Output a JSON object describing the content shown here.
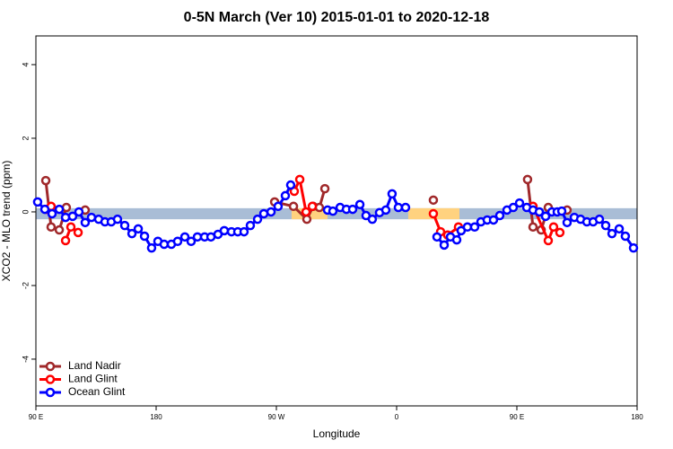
{
  "chart_data": {
    "type": "line",
    "title": "0-5N March (Ver 10)   2015-01-01 to 2020-12-18",
    "xlabel": "Longitude",
    "ylabel": "XCO2 - MLO trend (ppm)",
    "xlim": [
      90,
      540
    ],
    "xticks": [
      {
        "value": 90,
        "label": "90 E"
      },
      180,
      {
        "value": 270,
        "label": "90 W"
      },
      {
        "value": 360,
        "label": "0"
      },
      {
        "value": 450,
        "label": "90 E"
      },
      {
        "value": 540,
        "label": "180"
      }
    ],
    "ylim": [
      -5.27,
      4.78
    ],
    "yticks": [
      -4,
      -2,
      0,
      2,
      4
    ],
    "reference_band": {
      "ylim": [
        -0.2,
        0.1
      ],
      "color": "#a9bdd6"
    },
    "highlights": {
      "color": "#ffd27f",
      "xranges": [
        [
          281.4,
          308.3
        ],
        [
          368.7,
          407
        ]
      ]
    },
    "legend": "bottom-left",
    "series": [
      {
        "name": "Land Nadir",
        "color": "#a0282a",
        "x": [
          97.4,
          101.4,
          107.5,
          112.8,
          null,
          126.9,
          null,
          268.7,
          282.8,
          292.8,
          297.5,
          302.2,
          306.3,
          null,
          387.5,
          null,
          458.0,
          462.1,
          468.2,
          473.5,
          null,
          487.6
        ],
        "values": [
          0.85,
          -0.41,
          -0.49,
          0.12,
          null,
          0.05,
          null,
          0.27,
          0.15,
          -0.2,
          0.15,
          0.12,
          0.63,
          null,
          0.32,
          null,
          0.88,
          -0.41,
          -0.49,
          0.12,
          null,
          0.05
        ]
      },
      {
        "name": "Land Glint",
        "color": "#ff0000",
        "x": [
          98.1,
          101.4,
          null,
          112.2,
          116.2,
          121.6,
          null,
          283.4,
          287.5,
          292.2,
          296.9,
          null,
          387.5,
          392.9,
          398.2,
          406.3,
          null,
          462.1,
          473.5,
          477.5,
          482.2
        ],
        "values": [
          0.07,
          0.15,
          null,
          -0.78,
          -0.41,
          -0.56,
          null,
          0.56,
          0.88,
          0.0,
          0.15,
          null,
          -0.05,
          -0.54,
          -0.63,
          -0.41,
          null,
          0.15,
          -0.78,
          -0.41,
          -0.56
        ]
      },
      {
        "name": "Ocean Glint",
        "color": "#0000ff",
        "x": [
          91.3,
          96.7,
          102.1,
          107.5,
          112.2,
          117.5,
          122.2,
          126.9,
          131.6,
          137.0,
          141.7,
          146.4,
          151.1,
          156.5,
          161.9,
          166.6,
          171.3,
          176.6,
          181.3,
          186.0,
          191.4,
          196.1,
          201.5,
          206.2,
          210.9,
          216.3,
          221.0,
          226.3,
          231.0,
          236.4,
          241.1,
          245.8,
          250.5,
          255.9,
          260.6,
          266.0,
          271.3,
          276.7,
          280.7,
          null,
          308.3,
          312.3,
          317.7,
          322.4,
          327.1,
          332.5,
          337.1,
          341.8,
          347.2,
          351.9,
          356.6,
          361.3,
          366.7,
          null,
          390.2,
          395.6,
          400.3,
          405.0,
          408.3,
          413.0,
          418.4,
          423.1,
          427.8,
          432.5,
          437.2,
          442.6,
          447.3,
          452.0,
          457.4,
          462.1,
          466.8,
          471.5,
          476.2,
          480.2,
          483.6,
          487.6,
          493.0,
          497.7,
          502.4,
          507.1,
          511.8,
          516.5,
          521.2,
          526.6,
          531.2,
          537.3
        ],
        "values": [
          0.27,
          0.07,
          -0.05,
          0.07,
          -0.15,
          -0.12,
          0,
          -0.29,
          -0.15,
          -0.2,
          -0.27,
          -0.27,
          -0.2,
          -0.37,
          -0.59,
          -0.46,
          -0.66,
          -0.98,
          -0.8,
          -0.88,
          -0.88,
          -0.8,
          -0.68,
          -0.8,
          -0.68,
          -0.68,
          -0.68,
          -0.61,
          -0.51,
          -0.54,
          -0.54,
          -0.54,
          -0.37,
          -0.2,
          -0.05,
          0,
          0.15,
          0.44,
          0.73,
          null,
          0.05,
          0.02,
          0.12,
          0.07,
          0.07,
          0.2,
          -0.1,
          -0.2,
          -0.02,
          0.05,
          0.49,
          0.12,
          0.12,
          null,
          -0.68,
          -0.9,
          -0.68,
          -0.76,
          -0.51,
          -0.41,
          -0.41,
          -0.27,
          -0.22,
          -0.22,
          -0.1,
          0.05,
          0.12,
          0.24,
          0.12,
          0.05,
          0,
          -0.12,
          0,
          0,
          0.02,
          -0.29,
          -0.15,
          -0.2,
          -0.27,
          -0.27,
          -0.2,
          -0.37,
          -0.59,
          -0.46,
          -0.66,
          -0.98
        ]
      }
    ]
  }
}
